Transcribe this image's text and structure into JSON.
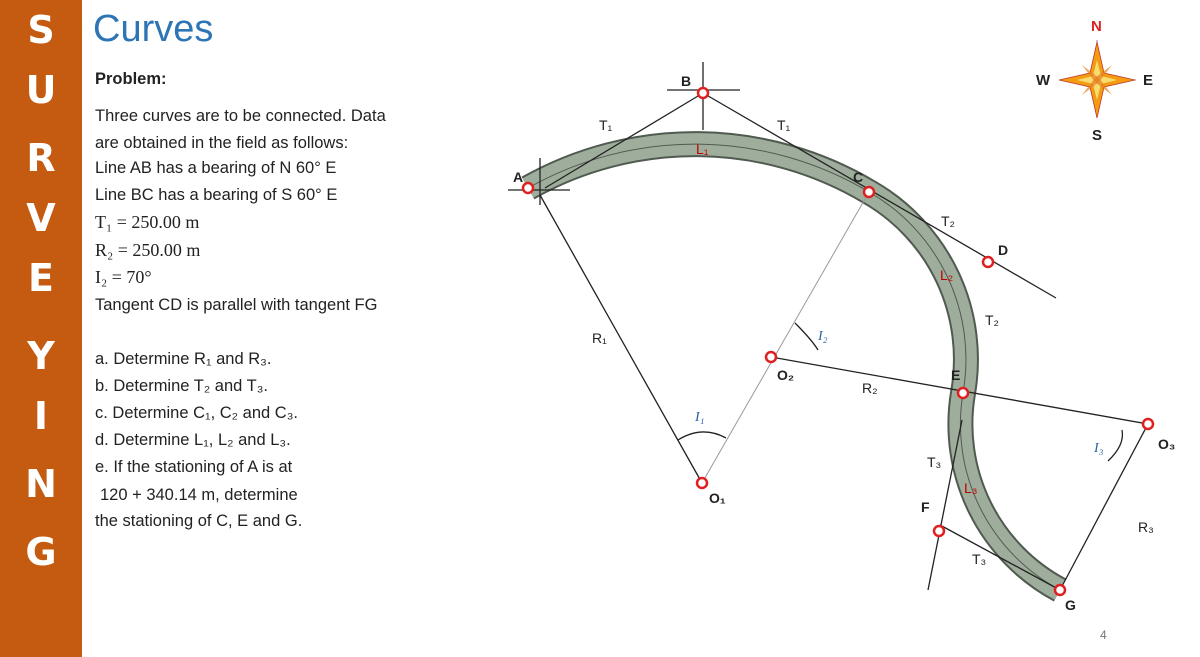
{
  "sidebar": {
    "letters": [
      "S",
      "U",
      "R",
      "V",
      "E",
      "Y",
      "I",
      "N",
      "G"
    ]
  },
  "title": "Curves",
  "problem": {
    "heading": "Problem:",
    "lines": [
      "Three curves are to be connected. Data",
      "are obtained in the field as follows:",
      "Line AB has a bearing of N 60° E",
      "Line BC has a bearing of S 60° E",
      "T₁ = 250.00 m",
      "R₂ = 250.00 m",
      "I₂ = 70°",
      "Tangent CD is parallel with tangent FG"
    ],
    "tasks": [
      "a.  Determine R₁ and R₃.",
      "b.  Determine T₂ and T₃.",
      "c.  Determine C₁, C₂ and C₃.",
      "d.  Determine L₁, L₂ and L₃.",
      "e.  If the stationing of A is at",
      "120 + 340.14 m, determine",
      "the stationing of C, E and G."
    ]
  },
  "diagram": {
    "labels": [
      "B",
      "A",
      "C",
      "D",
      "E",
      "F",
      "G",
      "O₁",
      "O₂",
      "O₃",
      "T₁",
      "T₁",
      "L₁",
      "R₁",
      "I₁",
      "I₂",
      "R₂",
      "T₂",
      "L₂",
      "T₂",
      "T₃",
      "L₃",
      "T₃",
      "I₃",
      "R₃"
    ]
  },
  "compass": {
    "north": "N",
    "east": "E",
    "south": "S",
    "west": "W"
  },
  "page_number": "4"
}
